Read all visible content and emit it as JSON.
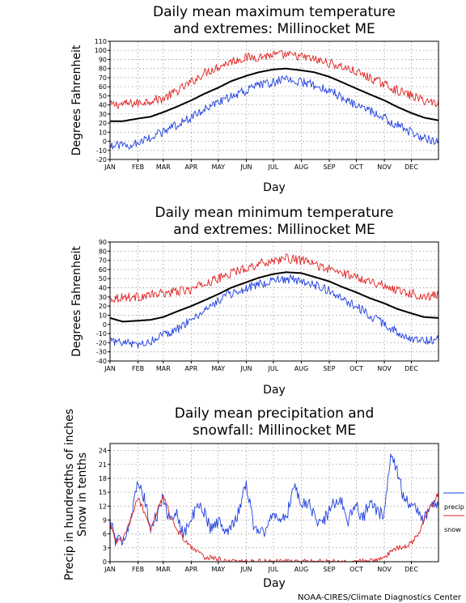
{
  "credit": "NOAA-CIRES/Climate Diagnostics Center",
  "colors": {
    "max_extreme": "#e02020",
    "min_extreme": "#1f3fe0",
    "mean": "#000000",
    "precip": "#1f3fe0",
    "snow": "#e02020"
  },
  "chart_data": [
    {
      "type": "line",
      "title": [
        "Daily mean maximum temperature",
        "and extremes: Millinocket ME"
      ],
      "ylabel": "Degrees Fahrenheit",
      "xlabel": "Day",
      "ylim": [
        -20,
        110
      ],
      "yticks": [
        "-20",
        "-10",
        "0",
        "10",
        "20",
        "30",
        "40",
        "50",
        "60",
        "70",
        "80",
        "90",
        "100",
        "110"
      ],
      "months": [
        "JAN",
        "FEB",
        "MAR",
        "APR",
        "MAY",
        "JUN",
        "JUL",
        "AUG",
        "SEP",
        "OCT",
        "NOV",
        "DEC"
      ],
      "grid": true,
      "series": [
        {
          "role": "upper",
          "day": [
            1,
            15,
            32,
            46,
            60,
            75,
            91,
            105,
            121,
            135,
            152,
            166,
            182,
            196,
            213,
            227,
            244,
            258,
            274,
            288,
            305,
            319,
            335,
            349,
            365
          ],
          "values": [
            40,
            41,
            42,
            45,
            47,
            55,
            65,
            75,
            82,
            88,
            92,
            93,
            95,
            95,
            93,
            90,
            86,
            82,
            76,
            70,
            63,
            56,
            50,
            45,
            42
          ]
        },
        {
          "role": "mean",
          "day": [
            1,
            15,
            32,
            46,
            60,
            75,
            91,
            105,
            121,
            135,
            152,
            166,
            182,
            196,
            213,
            227,
            244,
            258,
            274,
            288,
            305,
            319,
            335,
            349,
            365
          ],
          "values": [
            22,
            22,
            25,
            27,
            32,
            38,
            45,
            52,
            59,
            66,
            72,
            76,
            79,
            80,
            78,
            76,
            71,
            65,
            58,
            52,
            45,
            38,
            31,
            26,
            23
          ]
        },
        {
          "role": "lower",
          "day": [
            1,
            15,
            32,
            46,
            60,
            75,
            91,
            105,
            121,
            135,
            152,
            166,
            182,
            196,
            213,
            227,
            244,
            258,
            274,
            288,
            305,
            319,
            335,
            349,
            365
          ],
          "values": [
            -5,
            -5,
            -2,
            5,
            10,
            18,
            26,
            34,
            42,
            50,
            56,
            62,
            65,
            68,
            65,
            62,
            56,
            48,
            40,
            34,
            26,
            18,
            10,
            4,
            0
          ]
        }
      ]
    },
    {
      "type": "line",
      "title": [
        "Daily mean minimum temperature",
        "and extremes: Millinocket ME"
      ],
      "ylabel": "Degrees Fahrenheit",
      "xlabel": "Day",
      "ylim": [
        -40,
        90
      ],
      "yticks": [
        "-40",
        "-30",
        "-20",
        "-10",
        "0",
        "10",
        "20",
        "30",
        "40",
        "50",
        "60",
        "70",
        "80",
        "90"
      ],
      "months": [
        "JAN",
        "FEB",
        "MAR",
        "APR",
        "MAY",
        "JUN",
        "JUL",
        "AUG",
        "SEP",
        "OCT",
        "NOV",
        "DEC"
      ],
      "grid": true,
      "series": [
        {
          "role": "upper",
          "day": [
            1,
            15,
            32,
            46,
            60,
            75,
            91,
            105,
            121,
            135,
            152,
            166,
            182,
            196,
            213,
            227,
            244,
            258,
            274,
            288,
            305,
            319,
            335,
            349,
            365
          ],
          "values": [
            28,
            30,
            30,
            32,
            34,
            36,
            38,
            44,
            50,
            56,
            62,
            66,
            70,
            72,
            70,
            66,
            60,
            56,
            52,
            48,
            42,
            38,
            34,
            30,
            32
          ]
        },
        {
          "role": "mean",
          "day": [
            1,
            15,
            32,
            46,
            60,
            75,
            91,
            105,
            121,
            135,
            152,
            166,
            182,
            196,
            213,
            227,
            244,
            258,
            274,
            288,
            305,
            319,
            335,
            349,
            365
          ],
          "values": [
            7,
            3,
            4,
            5,
            8,
            14,
            20,
            26,
            33,
            40,
            46,
            51,
            55,
            57,
            56,
            52,
            47,
            41,
            35,
            29,
            23,
            17,
            12,
            8,
            7
          ]
        },
        {
          "role": "lower",
          "day": [
            1,
            15,
            32,
            46,
            60,
            75,
            91,
            105,
            121,
            135,
            152,
            166,
            182,
            196,
            213,
            227,
            244,
            258,
            274,
            288,
            305,
            319,
            335,
            349,
            365
          ],
          "values": [
            -18,
            -20,
            -22,
            -18,
            -12,
            -6,
            5,
            15,
            26,
            34,
            40,
            44,
            48,
            50,
            48,
            44,
            36,
            28,
            20,
            10,
            0,
            -8,
            -15,
            -18,
            -16
          ]
        }
      ]
    },
    {
      "type": "line",
      "title": [
        "Daily mean precipitation and",
        "snowfall: Millinocket ME"
      ],
      "ylabel": [
        "Precip in hundredths of inches",
        "Snow in tenths"
      ],
      "xlabel": "Day",
      "ylim": [
        0,
        25.5
      ],
      "yticks": [
        "0",
        "3",
        "6",
        "9",
        "12",
        "15",
        "18",
        "21",
        "24"
      ],
      "months": [
        "JAN",
        "FEB",
        "MAR",
        "APR",
        "MAY",
        "JUN",
        "JUL",
        "AUG",
        "SEP",
        "OCT",
        "NOV",
        "DEC"
      ],
      "grid": true,
      "legend_position": "right",
      "series": [
        {
          "name": "precip",
          "day": [
            1,
            8,
            15,
            22,
            32,
            40,
            46,
            53,
            60,
            68,
            75,
            82,
            91,
            98,
            105,
            113,
            121,
            128,
            135,
            142,
            152,
            160,
            166,
            173,
            182,
            190,
            196,
            205,
            213,
            220,
            227,
            235,
            244,
            251,
            258,
            265,
            274,
            281,
            288,
            296,
            305,
            312,
            319,
            326,
            335,
            343,
            349,
            357,
            365
          ],
          "values": [
            9,
            4,
            5,
            8,
            17,
            13,
            7,
            10,
            14,
            8,
            11,
            6,
            9,
            12,
            11,
            7,
            9,
            6,
            8,
            10,
            17,
            8,
            7,
            6,
            11,
            9,
            9,
            17,
            12,
            13,
            10,
            8,
            11,
            13,
            13,
            9,
            12,
            9,
            13,
            11,
            10,
            24,
            20,
            14,
            12,
            11,
            9,
            12,
            13
          ]
        },
        {
          "name": "snow",
          "day": [
            1,
            8,
            15,
            22,
            32,
            40,
            46,
            53,
            60,
            68,
            75,
            82,
            91,
            98,
            105,
            113,
            121,
            128,
            135,
            152,
            182,
            244,
            274,
            288,
            296,
            305,
            312,
            319,
            326,
            335,
            343,
            349,
            357,
            365
          ],
          "values": [
            8,
            4,
            5,
            8,
            14,
            10,
            7,
            11,
            14,
            10,
            7,
            5,
            3,
            2,
            1,
            1,
            0.5,
            0.3,
            0,
            0,
            0,
            0,
            0,
            0.2,
            0.5,
            1,
            2,
            3,
            3,
            4,
            6,
            9,
            12,
            15
          ]
        }
      ]
    }
  ]
}
